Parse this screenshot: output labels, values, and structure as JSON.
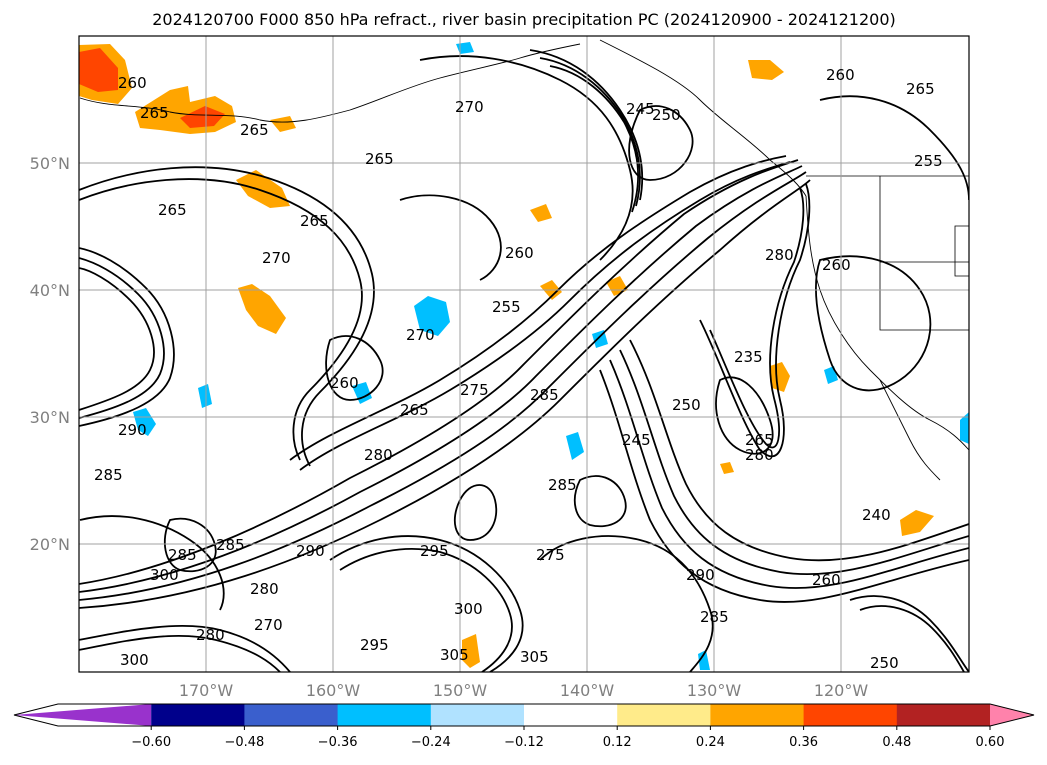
{
  "title": "2024120700 F000 850 hPa refract., river basin precipitation PC (2024120900 - 2024121200)",
  "map": {
    "lat_labels": [
      "50°N",
      "40°N",
      "30°N",
      "20°N"
    ],
    "lon_labels": [
      "170°W",
      "160°W",
      "150°W",
      "140°W",
      "130°W",
      "120°W"
    ],
    "grid_color": "#a0a0a0",
    "contour_color": "#000000",
    "contour_labels": [
      "260",
      "265",
      "265",
      "265",
      "265",
      "270",
      "270",
      "265",
      "260",
      "255",
      "245",
      "250",
      "260",
      "265",
      "255",
      "260",
      "265",
      "270",
      "275",
      "285",
      "280",
      "280",
      "245",
      "250",
      "265",
      "280",
      "235",
      "240",
      "260",
      "275",
      "285",
      "290",
      "285",
      "300",
      "295",
      "305",
      "290",
      "285",
      "280",
      "270",
      "300",
      "295",
      "290",
      "285",
      "280",
      "260",
      "300",
      "305",
      "285",
      "250"
    ],
    "precip_fill_colors": {
      "pos_low": "#fde88a",
      "pos_mid": "#ffa500",
      "pos_high": "#ff4500",
      "neg_low": "#b0e0f5",
      "neg_mid": "#00bfff"
    }
  },
  "colorbar": {
    "ticks": [
      "−0.60",
      "−0.48",
      "−0.36",
      "−0.24",
      "−0.12",
      "0.12",
      "0.24",
      "0.36",
      "0.48",
      "0.60"
    ],
    "colors": [
      "#9932cc",
      "#00008b",
      "#3a5fcd",
      "#00bfff",
      "#b0e2ff",
      "#ffffff",
      "#ffeb8a",
      "#ffa500",
      "#ff4500",
      "#b22222",
      "#ff82ab"
    ]
  }
}
